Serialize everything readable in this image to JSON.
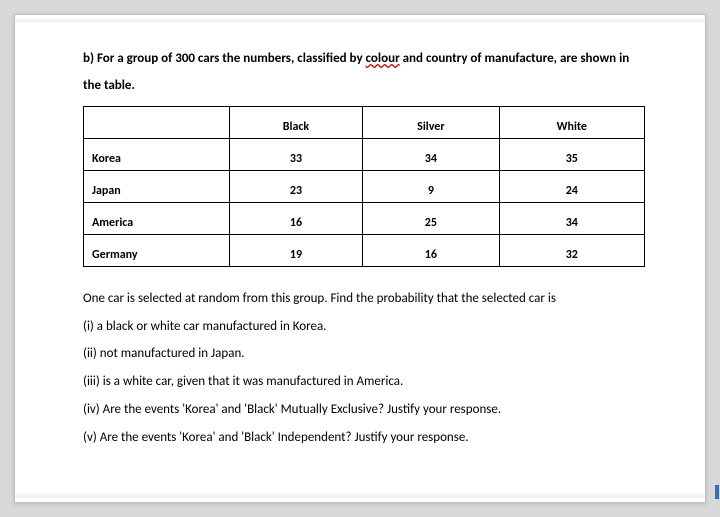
{
  "intro": {
    "prefix": "b) For a group of 300 cars the numbers, classified by ",
    "wavy_word": "colour",
    "suffix": " and country of manufacture, are shown in the table."
  },
  "table": {
    "columns": [
      "",
      "Black",
      "Silver",
      "White"
    ],
    "rows": [
      {
        "label": "Korea",
        "values": [
          "33",
          "34",
          "35"
        ]
      },
      {
        "label": "Japan",
        "values": [
          "23",
          "9",
          "24"
        ]
      },
      {
        "label": "America",
        "values": [
          "16",
          "25",
          "34"
        ]
      },
      {
        "label": "Germany",
        "values": [
          "19",
          "16",
          "32"
        ]
      }
    ]
  },
  "questions": {
    "lead": "One car is selected at random from this group. Find the probability that the selected car is",
    "i": "(i) a black or white car manufactured in Korea.",
    "ii": "(ii) not manufactured in Japan.",
    "iii": "(iii) is a white car, given that it was manufactured in America.",
    "iv": "(iv) Are the events 'Korea' and 'Black' Mutually Exclusive? Justify your response.",
    "v": "(v) Are the events 'Korea' and 'Black' Independent? Justify your response."
  },
  "style": {
    "wavy_color": "#cc0000",
    "text_color": "#000000",
    "page_bg": "#ffffff",
    "outer_bg": "#d8d8d8"
  }
}
